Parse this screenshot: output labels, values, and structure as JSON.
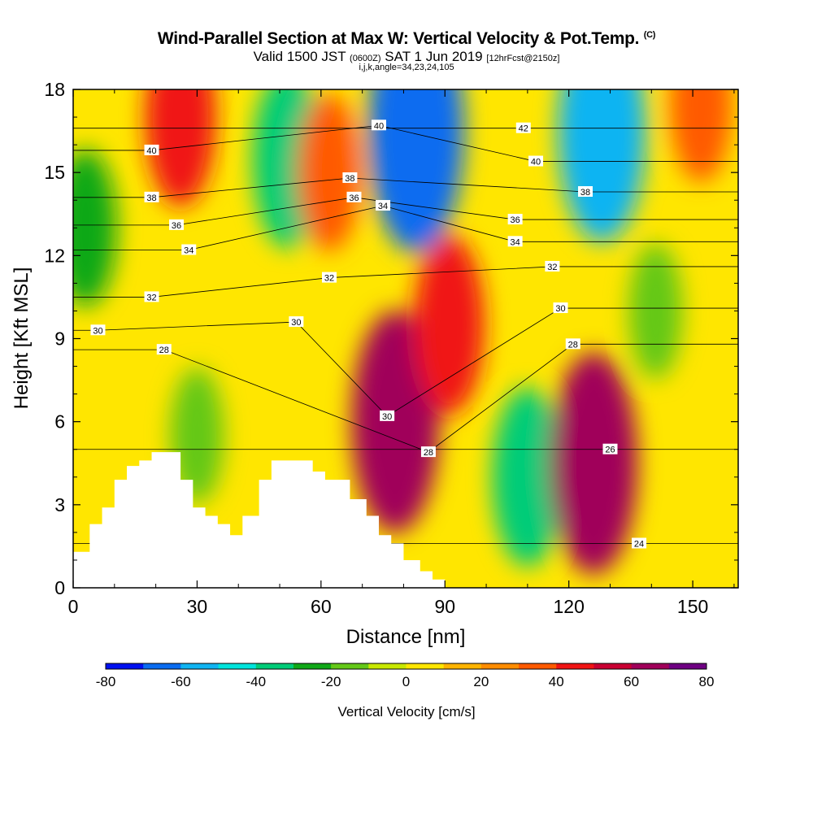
{
  "title": {
    "line1": "Wind-Parallel Section at Max W: Vertical Velocity & Pot.Temp.",
    "line1_mark": "(C)",
    "line2_a": "Valid 1500 JST",
    "line2_b": "(0600Z)",
    "line2_c": "SAT 1 Jun 2019",
    "line2_d": "[12hrFcst@2150z]",
    "line3": "i,j,k,angle=34,23,24,105"
  },
  "chart_data": {
    "type": "heatmap",
    "xlabel": "Distance [nm]",
    "ylabel": "Height [Kft MSL]",
    "xlim": [
      0,
      161
    ],
    "ylim": [
      0,
      18
    ],
    "xticks": [
      "0",
      "30",
      "60",
      "90",
      "120",
      "150"
    ],
    "yticks": [
      "0",
      "3",
      "6",
      "9",
      "12",
      "15",
      "18"
    ],
    "colorbar": {
      "label": "Vertical Velocity [cm/s]",
      "range": [
        -80,
        80
      ],
      "ticks": [
        "-80",
        "-60",
        "-40",
        "-20",
        "0",
        "20",
        "40",
        "60",
        "80"
      ],
      "colors": [
        "#0010f0",
        "#0a6cf0",
        "#10b4f2",
        "#00e4dc",
        "#00cc78",
        "#10a818",
        "#64c818",
        "#c8e800",
        "#ffe600",
        "#ffb400",
        "#ff8c00",
        "#ff5a00",
        "#f01414",
        "#c80032",
        "#a0005a",
        "#6e0082"
      ]
    },
    "terrain_kft": [
      [
        0,
        1.3
      ],
      [
        4,
        1.3
      ],
      [
        4,
        2.3
      ],
      [
        7,
        2.3
      ],
      [
        7,
        2.9
      ],
      [
        10,
        2.9
      ],
      [
        10,
        3.9
      ],
      [
        13,
        3.9
      ],
      [
        13,
        4.4
      ],
      [
        16,
        4.4
      ],
      [
        16,
        4.6
      ],
      [
        19,
        4.6
      ],
      [
        19,
        4.9
      ],
      [
        26,
        4.9
      ],
      [
        26,
        3.9
      ],
      [
        29,
        3.9
      ],
      [
        29,
        2.9
      ],
      [
        32,
        2.9
      ],
      [
        32,
        2.6
      ],
      [
        35,
        2.6
      ],
      [
        35,
        2.3
      ],
      [
        38,
        2.3
      ],
      [
        38,
        1.9
      ],
      [
        41,
        1.9
      ],
      [
        41,
        2.6
      ],
      [
        45,
        2.6
      ],
      [
        45,
        3.9
      ],
      [
        48,
        3.9
      ],
      [
        48,
        4.6
      ],
      [
        58,
        4.6
      ],
      [
        58,
        4.2
      ],
      [
        61,
        4.2
      ],
      [
        61,
        3.9
      ],
      [
        67,
        3.9
      ],
      [
        67,
        3.2
      ],
      [
        71,
        3.2
      ],
      [
        71,
        2.6
      ],
      [
        74,
        2.6
      ],
      [
        74,
        1.9
      ],
      [
        77,
        1.9
      ],
      [
        77,
        1.6
      ],
      [
        80,
        1.6
      ],
      [
        80,
        1.0
      ],
      [
        84,
        1.0
      ],
      [
        84,
        0.6
      ],
      [
        87,
        0.6
      ],
      [
        87,
        0.3
      ],
      [
        90,
        0.3
      ],
      [
        90,
        0.0
      ]
    ],
    "vertical_velocity_features": [
      {
        "x": 3,
        "y": 13,
        "value": -30
      },
      {
        "x": 26,
        "y": 17,
        "value": 40
      },
      {
        "x": 30,
        "y": 5.5,
        "value": -20
      },
      {
        "x": 52,
        "y": 15.5,
        "value": -40
      },
      {
        "x": 62,
        "y": 15,
        "value": 30
      },
      {
        "x": 78,
        "y": 6,
        "value": 60
      },
      {
        "x": 83,
        "y": 16.5,
        "value": -70
      },
      {
        "x": 91,
        "y": 9.5,
        "value": 40
      },
      {
        "x": 110,
        "y": 4,
        "value": -40
      },
      {
        "x": 128,
        "y": 16.5,
        "value": -60
      },
      {
        "x": 126,
        "y": 4.5,
        "value": 60
      },
      {
        "x": 141,
        "y": 10,
        "value": -20
      },
      {
        "x": 152,
        "y": 17.5,
        "value": 30
      }
    ],
    "isentrope_labels": [
      {
        "x": 19,
        "y": 15.8,
        "text": "40"
      },
      {
        "x": 19,
        "y": 14.1,
        "text": "38"
      },
      {
        "x": 25,
        "y": 13.1,
        "text": "36"
      },
      {
        "x": 28,
        "y": 12.2,
        "text": "34"
      },
      {
        "x": 19,
        "y": 10.5,
        "text": "32"
      },
      {
        "x": 6,
        "y": 9.3,
        "text": "30"
      },
      {
        "x": 22,
        "y": 8.6,
        "text": "28"
      },
      {
        "x": 54,
        "y": 9.6,
        "text": "30"
      },
      {
        "x": 62,
        "y": 11.2,
        "text": "32"
      },
      {
        "x": 67,
        "y": 14.8,
        "text": "38"
      },
      {
        "x": 68,
        "y": 14.1,
        "text": "36"
      },
      {
        "x": 74,
        "y": 16.7,
        "text": "40"
      },
      {
        "x": 75,
        "y": 13.8,
        "text": "34"
      },
      {
        "x": 76,
        "y": 6.2,
        "text": "30"
      },
      {
        "x": 86,
        "y": 4.9,
        "text": "28"
      },
      {
        "x": 109,
        "y": 16.6,
        "text": "42"
      },
      {
        "x": 112,
        "y": 15.4,
        "text": "40"
      },
      {
        "x": 124,
        "y": 14.3,
        "text": "38"
      },
      {
        "x": 107,
        "y": 13.3,
        "text": "36"
      },
      {
        "x": 107,
        "y": 12.5,
        "text": "34"
      },
      {
        "x": 116,
        "y": 11.6,
        "text": "32"
      },
      {
        "x": 118,
        "y": 10.1,
        "text": "30"
      },
      {
        "x": 121,
        "y": 8.8,
        "text": "28"
      },
      {
        "x": 130,
        "y": 5.0,
        "text": "26"
      },
      {
        "x": 137,
        "y": 1.6,
        "text": "24"
      }
    ]
  }
}
